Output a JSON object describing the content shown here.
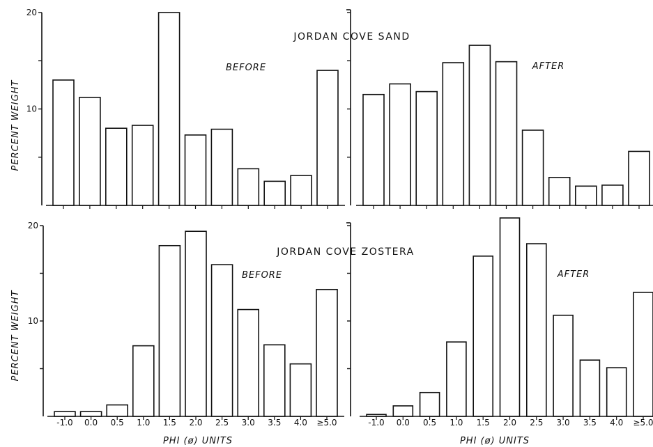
{
  "figure": {
    "ylabel": "PERCENT WEIGHT",
    "xlabel": "PHI (ø) UNITS",
    "top_title": "JORDAN COVE SAND",
    "bottom_title": "JORDAN COVE ZOSTERA"
  },
  "chart_data": [
    {
      "type": "bar",
      "title": "JORDAN COVE SAND",
      "panel_label": "BEFORE",
      "ylabel": "PERCENT WEIGHT",
      "categories": [
        "-1.0",
        "0.0",
        "0.5",
        "1.0",
        "1.5",
        "2.0",
        "2.5",
        "3.0",
        "3.5",
        "4.0",
        "≥5.0"
      ],
      "values": [
        13.0,
        11.2,
        8.0,
        8.3,
        20.0,
        7.3,
        7.9,
        3.8,
        2.5,
        3.1,
        14.0
      ],
      "ylim": [
        0,
        20
      ],
      "yticks": [
        "10",
        "20"
      ]
    },
    {
      "type": "bar",
      "title": "JORDAN COVE SAND",
      "panel_label": "AFTER",
      "categories": [
        "-1.0",
        "0.0",
        "0.5",
        "1.0",
        "1.5",
        "2.0",
        "2.5",
        "3.0",
        "3.5",
        "4.0",
        "≥5.0"
      ],
      "values": [
        11.5,
        12.6,
        11.8,
        14.8,
        16.6,
        14.9,
        7.8,
        2.9,
        2.0,
        2.1,
        5.6
      ],
      "ylim": [
        0,
        20
      ]
    },
    {
      "type": "bar",
      "title": "JORDAN COVE ZOSTERA",
      "panel_label": "BEFORE",
      "ylabel": "PERCENT WEIGHT",
      "xlabel": "PHI (ø) UNITS",
      "categories": [
        "-1.0",
        "0.0",
        "0.5",
        "1.0",
        "1.5",
        "2.0",
        "2.5",
        "3.0",
        "3.5",
        "4.0",
        "≥5.0"
      ],
      "values": [
        0.5,
        0.5,
        1.2,
        7.4,
        17.9,
        19.4,
        15.9,
        11.2,
        7.5,
        5.5,
        13.3
      ],
      "ylim": [
        0,
        20
      ],
      "yticks": [
        "10",
        "20"
      ]
    },
    {
      "type": "bar",
      "title": "JORDAN COVE ZOSTERA",
      "panel_label": "AFTER",
      "xlabel": "PHI (ø) UNITS",
      "categories": [
        "-1.0",
        "0.0",
        "0.5",
        "1.0",
        "1.5",
        "2.0",
        "2.5",
        "3.0",
        "3.5",
        "4.0",
        "≥5.0"
      ],
      "values": [
        0.2,
        1.1,
        2.5,
        7.8,
        16.8,
        20.8,
        18.1,
        10.6,
        5.9,
        5.1,
        13.0
      ],
      "ylim": [
        0,
        20
      ]
    }
  ]
}
